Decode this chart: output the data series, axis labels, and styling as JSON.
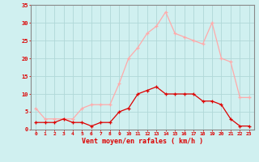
{
  "hours": [
    0,
    1,
    2,
    3,
    4,
    5,
    6,
    7,
    8,
    9,
    10,
    11,
    12,
    13,
    14,
    15,
    16,
    17,
    18,
    19,
    20,
    21,
    22,
    23
  ],
  "wind_mean": [
    2,
    2,
    2,
    3,
    2,
    2,
    1,
    2,
    2,
    5,
    6,
    10,
    11,
    12,
    10,
    10,
    10,
    10,
    8,
    8,
    7,
    3,
    1,
    1
  ],
  "wind_gust": [
    6,
    3,
    3,
    3,
    3,
    6,
    7,
    7,
    7,
    13,
    20,
    23,
    27,
    29,
    33,
    27,
    26,
    25,
    24,
    30,
    20,
    19,
    9,
    9
  ],
  "line_color_mean": "#dd0000",
  "line_color_gust": "#ffaaaa",
  "bg_color": "#d0f0f0",
  "grid_color": "#b0d8d8",
  "xlabel": "Vent moyen/en rafales ( km/h )",
  "yticks": [
    0,
    5,
    10,
    15,
    20,
    25,
    30,
    35
  ],
  "xlabel_color": "#dd0000",
  "tick_color": "#dd0000",
  "axis_color": "#888888"
}
